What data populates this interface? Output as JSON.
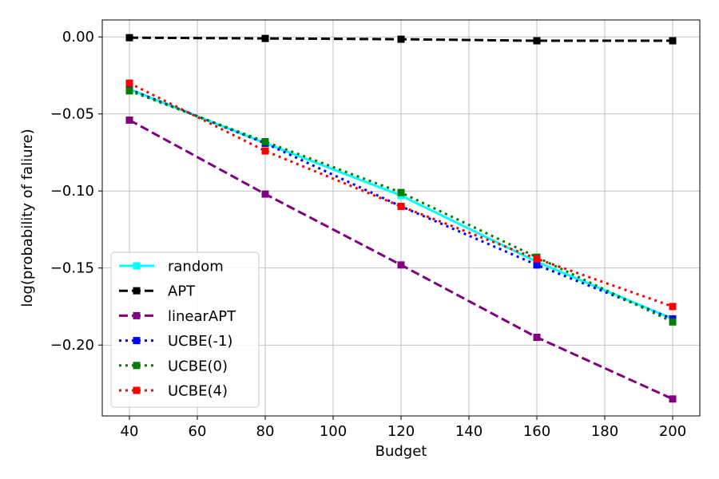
{
  "chart_data": {
    "type": "line",
    "title": "",
    "xlabel": "Budget",
    "ylabel": "log(probability of faliure)",
    "xlim": [
      32,
      208
    ],
    "ylim": [
      -0.246,
      0.011
    ],
    "xticks": [
      40,
      60,
      80,
      100,
      120,
      140,
      160,
      180,
      200
    ],
    "yticks": [
      0.0,
      -0.05,
      -0.1,
      -0.15,
      -0.2
    ],
    "xtick_labels": [
      "40",
      "60",
      "80",
      "100",
      "120",
      "140",
      "160",
      "180",
      "200"
    ],
    "ytick_labels": [
      "0.00",
      "−0.05",
      "−0.10",
      "−0.15",
      "−0.20"
    ],
    "grid": true,
    "legend_position": "lower-left",
    "x": [
      40,
      80,
      120,
      160,
      200
    ],
    "series": [
      {
        "name": "random",
        "color": "#00ffff",
        "dash": "solid",
        "values": [
          -0.034,
          -0.069,
          -0.103,
          -0.146,
          -0.183
        ]
      },
      {
        "name": "APT",
        "color": "#000000",
        "dash": "dashed",
        "values": [
          -0.0005,
          -0.001,
          -0.0015,
          -0.0025,
          -0.0025
        ]
      },
      {
        "name": "linearAPT",
        "color": "#800080",
        "dash": "dashed",
        "values": [
          -0.054,
          -0.102,
          -0.148,
          -0.195,
          -0.235
        ]
      },
      {
        "name": "UCBE(-1)",
        "color": "#0000ff",
        "dash": "dotted",
        "values": [
          -0.034,
          -0.069,
          -0.11,
          -0.148,
          -0.183
        ]
      },
      {
        "name": "UCBE(0)",
        "color": "#008000",
        "dash": "dotted",
        "values": [
          -0.035,
          -0.068,
          -0.101,
          -0.143,
          -0.185
        ]
      },
      {
        "name": "UCBE(4)",
        "color": "#ff0000",
        "dash": "dotted",
        "values": [
          -0.03,
          -0.074,
          -0.11,
          -0.144,
          -0.175
        ]
      }
    ]
  }
}
